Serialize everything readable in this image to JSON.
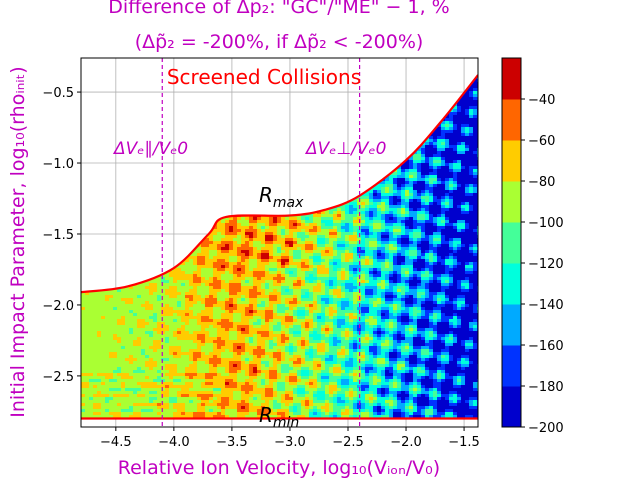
{
  "chart_data": {
    "type": "heatmap",
    "title_line1": "Difference of Δp₂: \"GC\"/\"ME\" − 1, %",
    "title_line2": "(Δp̃₂ = -200%, if Δp̃₂ < -200%)",
    "xlabel": "Relative Ion Velocity,  log₁₀(Vᵢₒₙ/V₀)",
    "ylabel": "Initial Impact Parameter, log₁₀(rhoᵢₙᵢₜ)",
    "xlim": [
      -4.8,
      -1.38
    ],
    "ylim": [
      -2.86,
      -0.26
    ],
    "x_ticks": [
      -4.5,
      -4.0,
      -3.5,
      -3.0,
      -2.5,
      -2.0,
      -1.5
    ],
    "x_tick_labels": [
      "−4.5",
      "−4.0",
      "−3.5",
      "−3.0",
      "−2.5",
      "−2.0",
      "−1.5"
    ],
    "y_ticks": [
      -2.5,
      -2.0,
      -1.5,
      -1.0,
      -0.5
    ],
    "y_tick_labels": [
      "−2.5",
      "−2.0",
      "−1.5",
      "−1.0",
      "−0.5"
    ],
    "grid": true,
    "colorbar": {
      "levels": [
        -200,
        -180,
        -160,
        -140,
        -120,
        -100,
        -80,
        -60,
        -40
      ],
      "tick_labels": [
        "−200",
        "−180",
        "−160",
        "−140",
        "−120",
        "−100",
        "−80",
        "−60",
        "−40"
      ],
      "colors": [
        "#0000cd",
        "#0033ff",
        "#00aaff",
        "#00ffdd",
        "#44ff99",
        "#aaff33",
        "#ffcc00",
        "#ff6600",
        "#cc0000"
      ]
    },
    "boundary_lines": {
      "r_max": [
        [
          -4.8,
          -1.91
        ],
        [
          -4.4,
          -1.87
        ],
        [
          -4.0,
          -1.74
        ],
        [
          -3.7,
          -1.5
        ],
        [
          -3.55,
          -1.38
        ],
        [
          -3.0,
          -1.37
        ],
        [
          -2.7,
          -1.33
        ],
        [
          -2.4,
          -1.23
        ],
        [
          -2.0,
          -0.98
        ],
        [
          -1.7,
          -0.71
        ],
        [
          -1.38,
          -0.38
        ]
      ],
      "r_min_y": -2.8,
      "color": "#ff0000"
    },
    "dashed_lines_x": [
      -4.1,
      -2.4
    ],
    "annotations": {
      "screened": "Screened Collisions",
      "dv_parallel": "ΔVₑ∥/Vₑ0",
      "dv_perp": "ΔVₑ⊥/Vₑ0",
      "r_max_label": "R",
      "r_max_sub": "max",
      "r_min_label": "R",
      "r_min_sub": "min"
    }
  }
}
